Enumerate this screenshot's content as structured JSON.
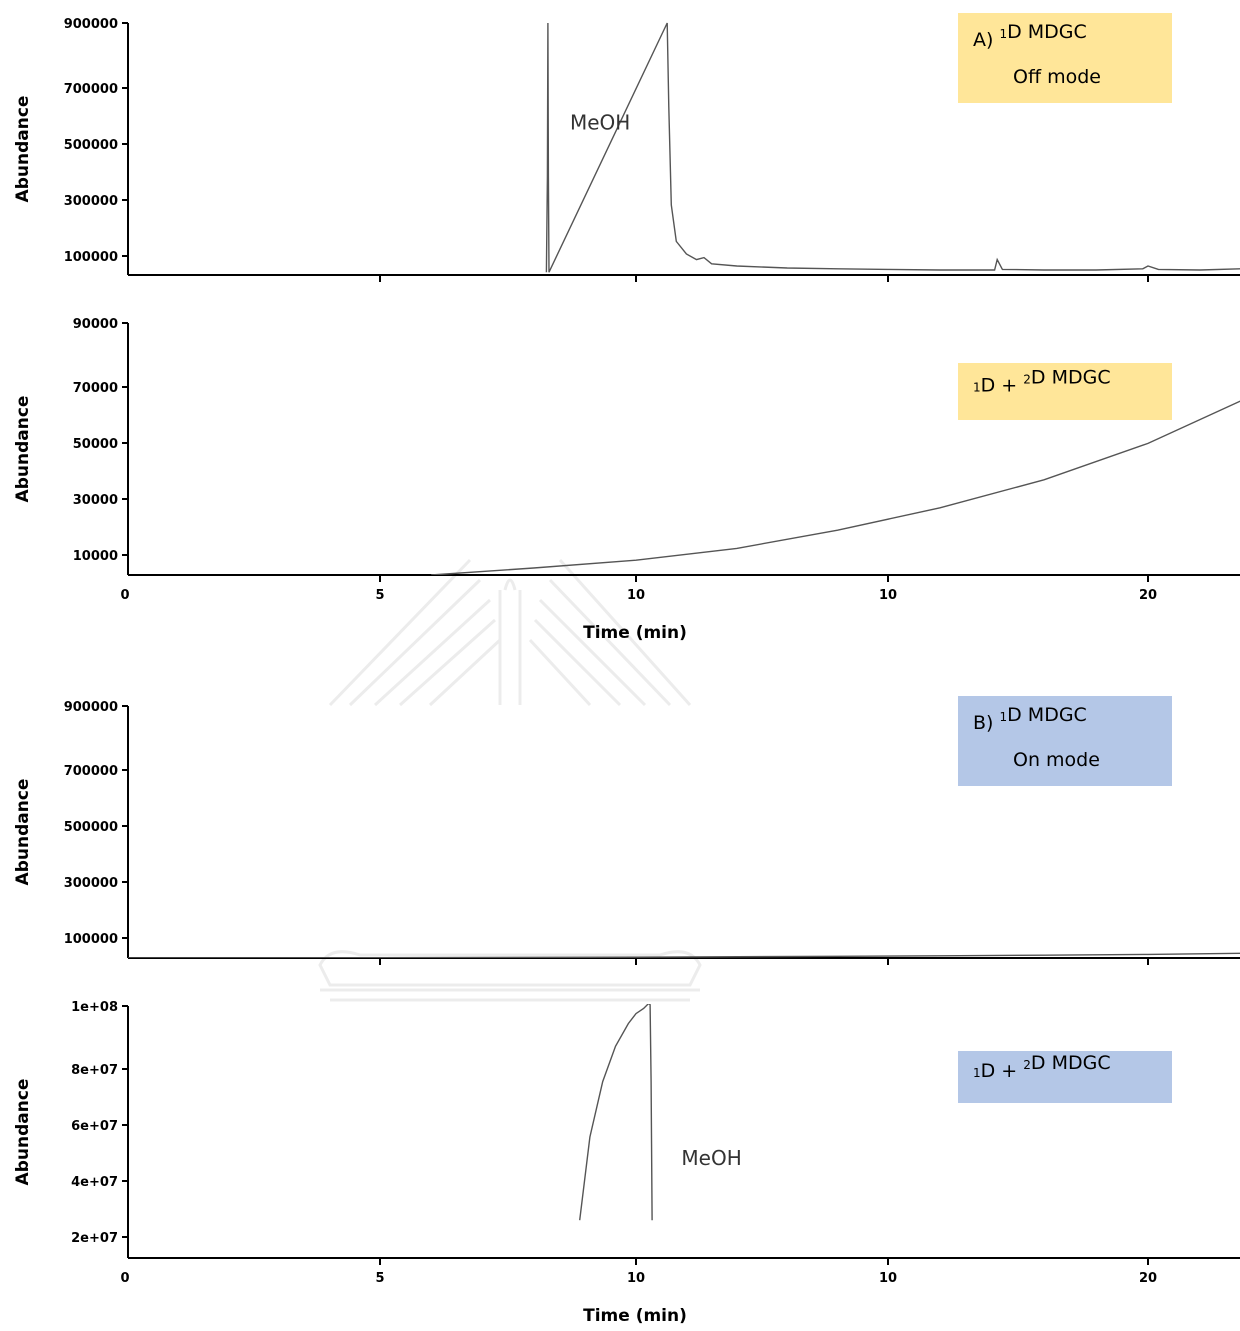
{
  "figure": {
    "shared_x_labels": [
      "Time (min)",
      "Time (min)"
    ],
    "watermark": "university-crest-watermark"
  },
  "colors": {
    "yellow_box": "#ffe699",
    "blue_box": "#b4c7e7",
    "trace": "#555555",
    "axis": "#000000"
  },
  "chart_data": [
    {
      "id": "A1",
      "type": "line",
      "ylabel": "Abundance",
      "xlabel": "",
      "yticks": [
        "100000",
        "300000",
        "500000",
        "700000",
        "900000"
      ],
      "ylim": [
        0,
        900000
      ],
      "xticks": [
        "",
        "",
        "",
        "",
        ""
      ],
      "box": {
        "prefix": "A) ",
        "sup": "1",
        "main": "D MDGC",
        "line2": "Off mode",
        "color": "yellow"
      },
      "annotations": [
        {
          "text": "MeOH",
          "x": 9.3,
          "y": 520000
        }
      ],
      "series": [
        {
          "values": [
            [
              8.25,
              10000
            ],
            [
              8.27,
              350000
            ],
            [
              8.28,
              900000
            ],
            [
              8.29,
              350000
            ],
            [
              8.3,
              10000
            ],
            [
              10.62,
              900000
            ],
            [
              10.65,
              600000
            ],
            [
              10.7,
              250000
            ],
            [
              10.8,
              120000
            ],
            [
              11.0,
              75000
            ],
            [
              11.2,
              55000
            ],
            [
              11.35,
              62000
            ],
            [
              11.5,
              40000
            ],
            [
              12,
              32000
            ],
            [
              13,
              25000
            ],
            [
              14,
              22000
            ],
            [
              15,
              20000
            ],
            [
              16,
              18000
            ],
            [
              17.05,
              18000
            ],
            [
              17.1,
              55000
            ],
            [
              17.2,
              20000
            ],
            [
              18,
              18000
            ],
            [
              19,
              18000
            ],
            [
              19.9,
              22000
            ],
            [
              20.0,
              32000
            ],
            [
              20.2,
              20000
            ],
            [
              21,
              18000
            ],
            [
              21.8,
              22000
            ],
            [
              22,
              20000
            ],
            [
              22.5,
              19000
            ],
            [
              23.0,
              20000
            ],
            [
              23.4,
              21000
            ]
          ]
        }
      ]
    },
    {
      "id": "A2",
      "type": "line",
      "ylabel": "Abundance",
      "xlabel": "Time (min)",
      "yticks": [
        "10000",
        "30000",
        "50000",
        "70000",
        "90000"
      ],
      "ylim": [
        0,
        90000
      ],
      "xticks": [
        "0",
        "5",
        "10",
        "10",
        "20"
      ],
      "box": {
        "prefix": "",
        "sup": "1",
        "main": "D + ",
        "sup2": "2",
        "main2": "D MDGC",
        "line2": "",
        "color": "yellow"
      },
      "annotations": [],
      "series": [
        {
          "values": [
            [
              6,
              0
            ],
            [
              8,
              2500
            ],
            [
              10,
              5300
            ],
            [
              12,
              9500
            ],
            [
              14,
              16000
            ],
            [
              16,
              24000
            ],
            [
              18,
              34000
            ],
            [
              20,
              47000
            ],
            [
              22,
              64000
            ],
            [
              23.4,
              90000
            ]
          ]
        }
      ]
    },
    {
      "id": "B1",
      "type": "line",
      "ylabel": "Abundance",
      "xlabel": "",
      "yticks": [
        "100000",
        "300000",
        "500000",
        "700000",
        "900000"
      ],
      "ylim": [
        0,
        900000
      ],
      "xticks": [
        "",
        "",
        "",
        "",
        ""
      ],
      "box": {
        "prefix": "B) ",
        "sup": "1",
        "main": "D MDGC",
        "line2": "On mode",
        "color": "blue"
      },
      "annotations": [],
      "series": [
        {
          "values": [
            [
              0,
              0
            ],
            [
              5,
              1000
            ],
            [
              10,
              3000
            ],
            [
              14,
              6000
            ],
            [
              16,
              8000
            ],
            [
              18,
              10000
            ],
            [
              20,
              13000
            ],
            [
              22,
              17000
            ],
            [
              23.4,
              19000
            ]
          ]
        }
      ]
    },
    {
      "id": "B2",
      "type": "line",
      "ylabel": "Abundance",
      "xlabel": "Time (min)",
      "yticks": [
        "2e+07",
        "4e+07",
        "6e+07",
        "8e+07",
        "1e+08"
      ],
      "ylim": [
        0,
        100000000
      ],
      "xticks": [
        "0",
        "5",
        "10",
        "10",
        "20"
      ],
      "box": {
        "prefix": "",
        "sup": "1",
        "main": "D + ",
        "sup2": "2",
        "main2": "D MDGC",
        "line2": "",
        "color": "blue"
      },
      "annotations": [
        {
          "text": "MeOH",
          "x": 11.5,
          "y": 37000000
        }
      ],
      "series": [
        {
          "values": [
            [
              8.9,
              15000000
            ],
            [
              9.1,
              48000000
            ],
            [
              9.35,
              70000000
            ],
            [
              9.6,
              84000000
            ],
            [
              9.85,
              93000000
            ],
            [
              10.0,
              97000000
            ],
            [
              10.15,
              99000000
            ],
            [
              10.25,
              101000000
            ],
            [
              10.28,
              100500000
            ],
            [
              10.3,
              70000000
            ],
            [
              10.32,
              15000000
            ]
          ]
        }
      ]
    }
  ]
}
